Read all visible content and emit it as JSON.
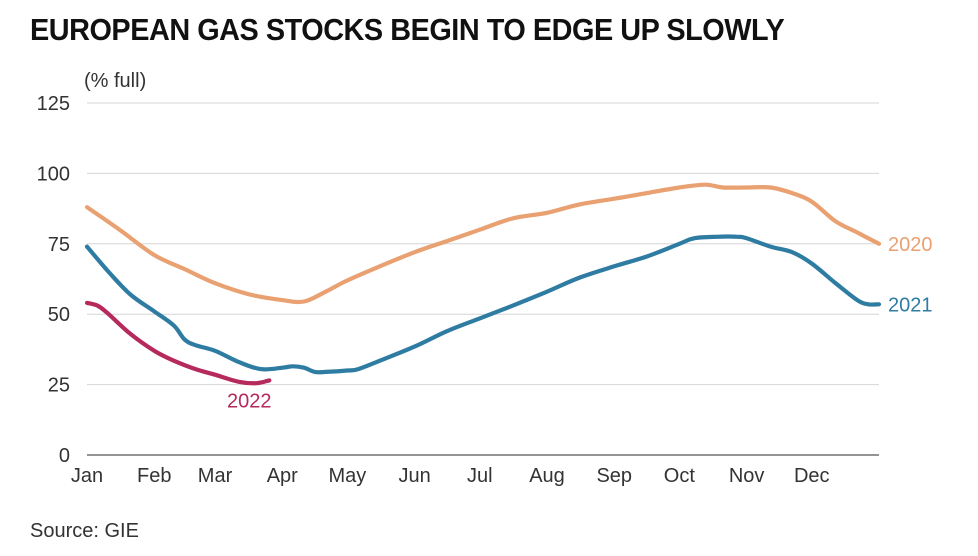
{
  "title": "EUROPEAN GAS STOCKS BEGIN TO EDGE UP SLOWLY",
  "unit_label": "(% full)",
  "source": "Source: GIE",
  "chart_data": {
    "type": "line",
    "title": "EUROPEAN GAS STOCKS BEGIN TO EDGE UP SLOWLY",
    "ylabel": "(% full)",
    "xlabel": "",
    "ylim": [
      0,
      125
    ],
    "yticks": [
      0,
      25,
      50,
      75,
      100,
      125
    ],
    "xlim": [
      0,
      365
    ],
    "xtick_labels": [
      "Jan",
      "Feb",
      "Mar",
      "Apr",
      "May",
      "Jun",
      "Jul",
      "Aug",
      "Sep",
      "Oct",
      "Nov",
      "Dec"
    ],
    "xtick_days": [
      0,
      31,
      59,
      90,
      120,
      151,
      181,
      212,
      243,
      273,
      304,
      334
    ],
    "grid": true,
    "series": [
      {
        "name": "2020",
        "color": "#e9a172",
        "x": [
          0,
          15,
          31,
          45,
          59,
          75,
          90,
          100,
          110,
          120,
          135,
          151,
          166,
          181,
          196,
          212,
          227,
          243,
          258,
          273,
          285,
          293,
          304,
          315,
          325,
          334,
          345,
          355,
          365
        ],
        "y": [
          88,
          80,
          71,
          66,
          61,
          57,
          55,
          54.5,
          58,
          62,
          67,
          72,
          76,
          80,
          84,
          86,
          89,
          91,
          93,
          95,
          96,
          95,
          95,
          95,
          93,
          90,
          83,
          79,
          75
        ]
      },
      {
        "name": "2021",
        "color": "#2f7ca3",
        "x": [
          0,
          10,
          20,
          31,
          40,
          45,
          50,
          59,
          70,
          80,
          90,
          95,
          100,
          105,
          110,
          120,
          125,
          135,
          151,
          166,
          181,
          196,
          212,
          227,
          243,
          258,
          273,
          280,
          290,
          300,
          304,
          315,
          325,
          334,
          345,
          355,
          360,
          365
        ],
        "y": [
          74,
          65,
          57,
          51,
          46,
          41,
          39,
          37,
          33,
          30.5,
          31,
          31.5,
          31,
          29.5,
          29.5,
          30,
          30.5,
          33.5,
          38.5,
          44,
          48.5,
          53,
          58,
          63,
          67,
          70.5,
          75,
          77,
          77.5,
          77.5,
          77,
          74,
          72,
          68,
          61,
          55,
          53.5,
          53.5
        ]
      },
      {
        "name": "2022",
        "color": "#b6295c",
        "x": [
          0,
          5,
          10,
          20,
          31,
          40,
          50,
          59,
          70,
          78,
          84
        ],
        "y": [
          54,
          53,
          50,
          43,
          37,
          33.5,
          30.5,
          28.5,
          26,
          25.5,
          26.5
        ]
      }
    ]
  }
}
